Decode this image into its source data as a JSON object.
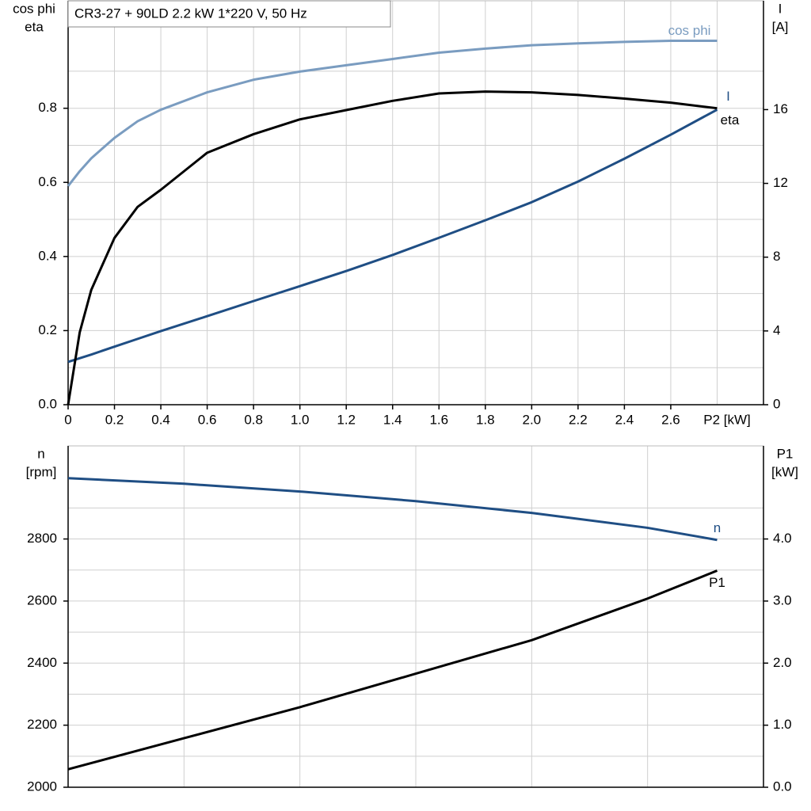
{
  "chart_data": [
    {
      "type": "line",
      "title": "CR3-27 + 90LD   2.2 kW   1*220 V, 50 Hz",
      "xlabel": "P2 [kW]",
      "ylabel": [
        "cos phi",
        "eta"
      ],
      "y2label": [
        "I",
        "[A]"
      ],
      "x": [
        0,
        0.05,
        0.1,
        0.2,
        0.3,
        0.4,
        0.6,
        0.8,
        1.0,
        1.2,
        1.4,
        1.6,
        1.8,
        2.0,
        2.2,
        2.4,
        2.6,
        2.8
      ],
      "xlim": [
        0,
        3.0
      ],
      "xticks": [
        0,
        0.2,
        0.4,
        0.6,
        0.8,
        {
          "value": 1,
          "label": "1.0"
        },
        1.2,
        1.4,
        1.6,
        1.8,
        {
          "value": 2,
          "label": "2.0"
        },
        2.2,
        2.4,
        2.6
      ],
      "ylim": [
        0,
        1.09
      ],
      "yticks": [
        {
          "value": 0,
          "label": "0.0"
        },
        0.2,
        0.4,
        0.6,
        0.8
      ],
      "y2lim": [
        0,
        21.9
      ],
      "y2ticks": [
        0,
        4,
        8,
        12,
        16
      ],
      "grid": true,
      "series": [
        {
          "name": "cos phi",
          "color": "#7a9cc0",
          "axis": "y",
          "values": [
            0.59,
            0.63,
            0.665,
            0.72,
            0.765,
            0.796,
            0.843,
            0.877,
            0.899,
            0.916,
            0.933,
            0.95,
            0.961,
            0.97,
            0.975,
            0.979,
            0.982,
            0.982
          ]
        },
        {
          "name": "I",
          "color": "#1f4e84",
          "axis": "y2",
          "values": [
            2.32,
            2.52,
            2.72,
            3.15,
            3.57,
            3.99,
            4.8,
            5.62,
            6.43,
            7.25,
            8.12,
            9.05,
            10.0,
            10.98,
            12.1,
            13.34,
            14.64,
            16.0
          ]
        },
        {
          "name": "eta",
          "color": "#000000",
          "axis": "y",
          "values": [
            0,
            0.195,
            0.31,
            0.45,
            0.534,
            0.58,
            0.68,
            0.73,
            0.77,
            0.795,
            0.82,
            0.84,
            0.845,
            0.843,
            0.836,
            0.826,
            0.815,
            0.8
          ]
        }
      ]
    },
    {
      "type": "line",
      "ylabel": [
        "n",
        "[rpm]"
      ],
      "y2label": [
        "P1",
        "[kW]"
      ],
      "x": [
        0,
        0.5,
        1.0,
        1.5,
        2.0,
        2.5,
        2.8
      ],
      "xlim": [
        0,
        3.0
      ],
      "xticks": [
        0.5,
        1.0,
        1.5,
        2.0,
        2.5
      ],
      "show_xtick_labels": false,
      "ylim": [
        2000,
        3100
      ],
      "yticks": [
        2000,
        2200,
        2400,
        2600,
        2800
      ],
      "y2lim": [
        0,
        5.5
      ],
      "y2ticks": [
        {
          "value": 0,
          "label": "0.0"
        },
        {
          "value": 1,
          "label": "1.0"
        },
        {
          "value": 2,
          "label": "2.0"
        },
        {
          "value": 3,
          "label": "3.0"
        },
        {
          "value": 4,
          "label": "4.0"
        }
      ],
      "grid": true,
      "series": [
        {
          "name": "n",
          "color": "#1f4e84",
          "axis": "y",
          "values": [
            2996,
            2978,
            2953,
            2922,
            2884,
            2836,
            2797
          ]
        },
        {
          "name": "P1",
          "color": "#000000",
          "axis": "y2",
          "values": [
            0.29,
            0.79,
            1.29,
            1.83,
            2.37,
            3.04,
            3.49
          ]
        }
      ]
    }
  ]
}
